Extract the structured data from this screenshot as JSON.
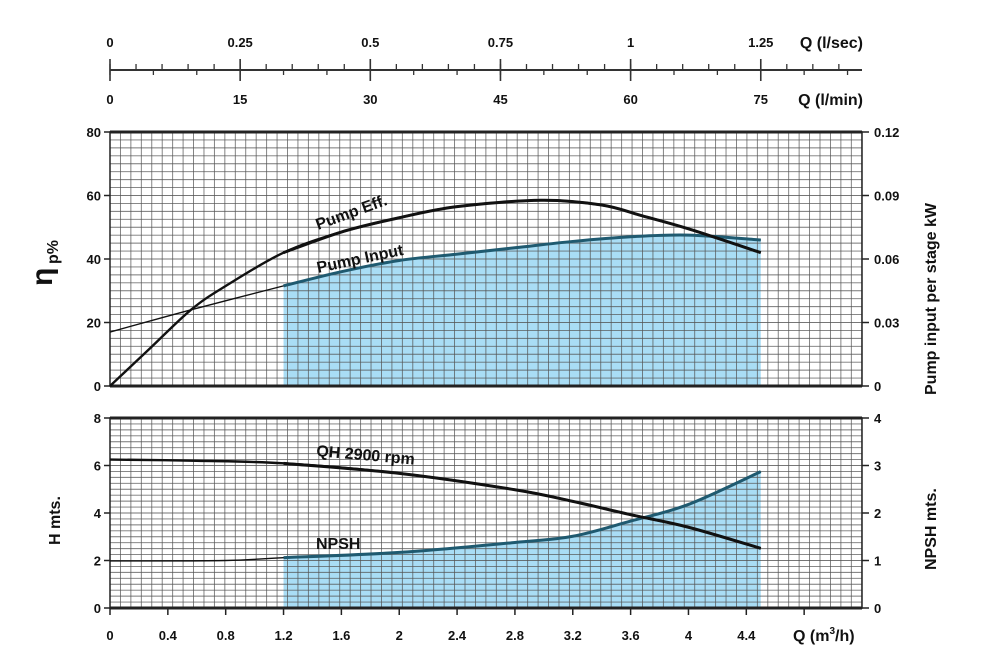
{
  "chart_data": [
    {
      "type": "axis",
      "name": "top-flow-axes",
      "lsec": {
        "label": "Q (l/sec)",
        "ticks": [
          "0",
          "0.25",
          "0.5",
          "0.75",
          "1",
          "1.25"
        ],
        "values": [
          0,
          0.25,
          0.5,
          0.75,
          1,
          1.25
        ]
      },
      "lmin": {
        "label": "Q (l/min)",
        "ticks": [
          "0",
          "15",
          "30",
          "45",
          "60",
          "75"
        ],
        "values": [
          0,
          15,
          30,
          45,
          60,
          75
        ]
      }
    },
    {
      "type": "line",
      "name": "efficiency-power",
      "xlabel": "Q (m3/h)",
      "xlim": [
        0,
        5.2
      ],
      "ylabel_left": {
        "symbol": "η",
        "sub": "p%"
      },
      "ylabel_right": "Pump input per stage kW",
      "ylim_left": [
        0,
        80
      ],
      "ylim_right": [
        0,
        0.12
      ],
      "yticks_left": [
        "0",
        "20",
        "40",
        "60",
        "80"
      ],
      "yticks_right": [
        "0",
        "0.03",
        "0.06",
        "0.09",
        "0.12"
      ],
      "grid": true,
      "series": [
        {
          "name": "Pump Eff.",
          "axis": "left",
          "points": [
            [
              0,
              0
            ],
            [
              0.28,
              12
            ],
            [
              0.56,
              24
            ],
            [
              0.8,
              31.5
            ],
            [
              1.2,
              42
            ],
            [
              1.6,
              48.5
            ],
            [
              2,
              53
            ],
            [
              2.4,
              56.5
            ],
            [
              2.98,
              58.5
            ],
            [
              3.4,
              57
            ],
            [
              3.68,
              53.6
            ],
            [
              4,
              49.5
            ],
            [
              4.5,
              42
            ]
          ]
        },
        {
          "name": "Pump Input",
          "axis": "right",
          "points": [
            [
              0,
              0.0255
            ],
            [
              0.56,
              0.036
            ],
            [
              1.2,
              0.0473
            ],
            [
              1.6,
              0.054
            ],
            [
              2,
              0.0593
            ],
            [
              2.4,
              0.0623
            ],
            [
              2.8,
              0.0653
            ],
            [
              3.2,
              0.0683
            ],
            [
              3.6,
              0.0705
            ],
            [
              4,
              0.0713
            ],
            [
              4.5,
              0.069
            ]
          ]
        }
      ],
      "shaded_range": [
        1.2,
        4.5
      ]
    },
    {
      "type": "line",
      "name": "head-npsh",
      "xlabel": "Q (m³/h)",
      "xlabel_main": "Q (m",
      "xlabel_sup": "3",
      "xlabel_end": "/h)",
      "xlim": [
        0,
        5.2
      ],
      "xticks": [
        "0",
        "0.4",
        "0.8",
        "1.2",
        "1.6",
        "2",
        "2.4",
        "2.8",
        "3.2",
        "3.6",
        "4",
        "4.4"
      ],
      "ylabel_left": "H mts.",
      "ylabel_right": "NPSH mts.",
      "ylim_left": [
        0,
        8
      ],
      "ylim_right": [
        0,
        4
      ],
      "yticks_left": [
        "0",
        "2",
        "4",
        "6",
        "8"
      ],
      "yticks_right": [
        "0",
        "1",
        "2",
        "3",
        "4"
      ],
      "grid": true,
      "series": [
        {
          "name": "QH 2900 rpm",
          "axis": "left",
          "points": [
            [
              0,
              6.25
            ],
            [
              0.6,
              6.2
            ],
            [
              1.2,
              6.09
            ],
            [
              2,
              5.67
            ],
            [
              2.8,
              4.98
            ],
            [
              3.2,
              4.49
            ],
            [
              3.6,
              3.93
            ],
            [
              4,
              3.4
            ],
            [
              4.5,
              2.51
            ]
          ]
        },
        {
          "name": "NPSH",
          "axis": "right",
          "points": [
            [
              0,
              0.99
            ],
            [
              0.8,
              1.0
            ],
            [
              1.2,
              1.06
            ],
            [
              2,
              1.17
            ],
            [
              2.8,
              1.38
            ],
            [
              3.2,
              1.51
            ],
            [
              3.6,
              1.83
            ],
            [
              4,
              2.18
            ],
            [
              4.5,
              2.87
            ]
          ]
        }
      ],
      "shaded_range": [
        1.2,
        4.5
      ]
    }
  ],
  "colors": {
    "fill": "#a9ddf5",
    "shaded_line": "#1f5a70",
    "line": "#111111",
    "grid": "#555555"
  }
}
